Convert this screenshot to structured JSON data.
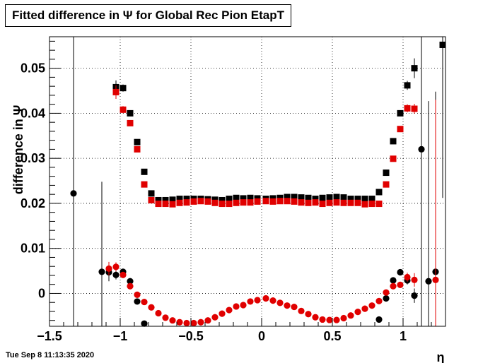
{
  "chart_data": {
    "type": "scatter",
    "title": "Fitted difference in  Ψ  for Global Rec Pion EtapT",
    "xlabel": "η",
    "ylabel": "difference in  Ψ",
    "xlim": [
      -1.5,
      1.3
    ],
    "ylim": [
      -0.0073,
      0.057
    ],
    "grid": true,
    "x_ticks": [
      -1.5,
      -1,
      -0.5,
      0,
      0.5,
      1
    ],
    "x_tick_labels": [
      "−1.5",
      "−1",
      "−0.5",
      "0",
      "0.5",
      "1"
    ],
    "y_ticks": [
      0,
      0.01,
      0.02,
      0.03,
      0.04,
      0.05
    ],
    "y_tick_labels": [
      "0",
      "0.01",
      "0.02",
      "0.03",
      "0.04",
      "0.05"
    ],
    "series": [
      {
        "marker": "square",
        "color": "#000000",
        "x": [
          -1.03,
          -0.98,
          -0.93,
          -0.88,
          -0.83,
          -0.78,
          -0.73,
          -0.68,
          -0.63,
          -0.58,
          -0.53,
          -0.48,
          -0.43,
          -0.38,
          -0.33,
          -0.28,
          -0.23,
          -0.18,
          -0.13,
          -0.08,
          -0.03,
          0.03,
          0.08,
          0.13,
          0.18,
          0.23,
          0.28,
          0.33,
          0.38,
          0.43,
          0.48,
          0.53,
          0.58,
          0.63,
          0.68,
          0.73,
          0.78,
          0.83,
          0.88,
          0.93,
          0.98,
          1.03,
          1.08,
          1.28
        ],
        "y": [
          0.0458,
          0.0456,
          0.04,
          0.0336,
          0.027,
          0.0222,
          0.0207,
          0.0207,
          0.0208,
          0.021,
          0.021,
          0.021,
          0.021,
          0.0209,
          0.0208,
          0.0207,
          0.021,
          0.0212,
          0.0211,
          0.0212,
          0.0211,
          0.021,
          0.0211,
          0.0212,
          0.0214,
          0.0214,
          0.0213,
          0.0212,
          0.021,
          0.0212,
          0.0213,
          0.0214,
          0.0213,
          0.021,
          0.021,
          0.021,
          0.021,
          0.0225,
          0.0268,
          0.0338,
          0.04,
          0.0462,
          0.05,
          0.0552
        ],
        "yerr": [
          0.0015,
          0.0008,
          0.0004,
          0.0003,
          0.0003,
          0.0002,
          0.0002,
          0.0002,
          0.0002,
          0.0002,
          0.0002,
          0.0002,
          0.0002,
          0.0002,
          0.0002,
          0.0002,
          0.0002,
          0.0002,
          0.0002,
          0.0002,
          0.0002,
          0.0002,
          0.0002,
          0.0002,
          0.0002,
          0.0002,
          0.0002,
          0.0002,
          0.0002,
          0.0002,
          0.0002,
          0.0002,
          0.0002,
          0.0002,
          0.0002,
          0.0002,
          0.0002,
          0.0003,
          0.0003,
          0.0004,
          0.0006,
          0.001,
          0.0022,
          0.034
        ]
      },
      {
        "marker": "square",
        "color": "#e00000",
        "x": [
          -1.03,
          -0.98,
          -0.93,
          -0.88,
          -0.83,
          -0.78,
          -0.73,
          -0.68,
          -0.63,
          -0.58,
          -0.53,
          -0.48,
          -0.43,
          -0.38,
          -0.33,
          -0.28,
          -0.23,
          -0.18,
          -0.13,
          -0.08,
          -0.03,
          0.03,
          0.08,
          0.13,
          0.18,
          0.23,
          0.28,
          0.33,
          0.38,
          0.43,
          0.48,
          0.53,
          0.58,
          0.63,
          0.68,
          0.73,
          0.78,
          0.83,
          0.88,
          0.93,
          0.98,
          1.03,
          1.08
        ],
        "y": [
          0.0447,
          0.0408,
          0.0378,
          0.032,
          0.0242,
          0.0207,
          0.0199,
          0.0199,
          0.0198,
          0.0201,
          0.0202,
          0.0204,
          0.0205,
          0.0204,
          0.0201,
          0.0199,
          0.0199,
          0.0201,
          0.0202,
          0.0202,
          0.0204,
          0.0205,
          0.0204,
          0.0205,
          0.0205,
          0.0204,
          0.0202,
          0.0201,
          0.0202,
          0.0199,
          0.0201,
          0.0202,
          0.0201,
          0.0201,
          0.0201,
          0.0198,
          0.0199,
          0.0199,
          0.0242,
          0.0299,
          0.0365,
          0.0411,
          0.041
        ],
        "yerr": [
          0.0015,
          0.0008,
          0.0004,
          0.0003,
          0.0003,
          0.0002,
          0.0002,
          0.0002,
          0.0002,
          0.0002,
          0.0002,
          0.0002,
          0.0002,
          0.0002,
          0.0002,
          0.0002,
          0.0002,
          0.0002,
          0.0002,
          0.0002,
          0.0002,
          0.0002,
          0.0002,
          0.0002,
          0.0002,
          0.0002,
          0.0002,
          0.0002,
          0.0002,
          0.0002,
          0.0002,
          0.0002,
          0.0002,
          0.0002,
          0.0002,
          0.0002,
          0.0002,
          0.0002,
          0.0003,
          0.0004,
          0.0006,
          0.0009,
          0.0011
        ]
      },
      {
        "marker": "circle",
        "color": "#000000",
        "x": [
          -1.33,
          -1.13,
          -1.08,
          -1.03,
          -0.98,
          -0.93,
          -0.88,
          -0.83,
          0.83,
          0.88,
          0.93,
          0.98,
          1.03,
          1.08,
          1.13,
          1.18,
          1.23
        ],
        "y": [
          0.0222,
          0.0048,
          0.0047,
          0.0041,
          0.0048,
          0.0027,
          -0.0018,
          -0.0067,
          -0.0058,
          -0.0011,
          0.0029,
          0.0047,
          0.0029,
          -0.0005,
          0.032,
          0.0027,
          0.0048
        ],
        "yerr": [
          0.04,
          0.02,
          0.002,
          0.001,
          0.0006,
          0.0005,
          0.0004,
          0.0003,
          0.0003,
          0.0004,
          0.0005,
          0.0006,
          0.0009,
          0.0016,
          0.04,
          0.04,
          0.04
        ]
      },
      {
        "marker": "circle",
        "color": "#e00000",
        "x": [
          -1.08,
          -1.03,
          -0.98,
          -0.93,
          -0.88,
          -0.83,
          -0.78,
          -0.73,
          -0.68,
          -0.63,
          -0.58,
          -0.53,
          -0.48,
          -0.43,
          -0.38,
          -0.33,
          -0.28,
          -0.23,
          -0.18,
          -0.13,
          -0.08,
          -0.03,
          0.03,
          0.08,
          0.13,
          0.18,
          0.23,
          0.28,
          0.33,
          0.38,
          0.43,
          0.48,
          0.53,
          0.58,
          0.63,
          0.68,
          0.73,
          0.78,
          0.83,
          0.88,
          0.93,
          0.98,
          1.03,
          1.08,
          1.23
        ],
        "y": [
          0.0055,
          0.0059,
          0.0041,
          0.0016,
          -0.0003,
          -0.0019,
          -0.0031,
          -0.0044,
          -0.0054,
          -0.006,
          -0.0064,
          -0.0066,
          -0.0066,
          -0.0064,
          -0.006,
          -0.0053,
          -0.0045,
          -0.0037,
          -0.0029,
          -0.0026,
          -0.0018,
          -0.0015,
          -0.0011,
          -0.0016,
          -0.0021,
          -0.0027,
          -0.003,
          -0.0039,
          -0.0046,
          -0.0053,
          -0.0058,
          -0.0059,
          -0.0059,
          -0.0055,
          -0.0049,
          -0.0041,
          -0.0034,
          -0.0027,
          -0.0017,
          0.0002,
          0.0016,
          0.0019,
          0.0036,
          0.003,
          0.003
        ],
        "yerr": [
          0.0015,
          0.001,
          0.0006,
          0.0004,
          0.0003,
          0.0003,
          0.0002,
          0.0002,
          0.0002,
          0.0002,
          0.0002,
          0.0002,
          0.0002,
          0.0002,
          0.0002,
          0.0002,
          0.0002,
          0.0002,
          0.0002,
          0.0002,
          0.0002,
          0.0002,
          0.0002,
          0.0002,
          0.0002,
          0.0002,
          0.0002,
          0.0002,
          0.0002,
          0.0002,
          0.0002,
          0.0002,
          0.0002,
          0.0002,
          0.0002,
          0.0002,
          0.0002,
          0.0003,
          0.0003,
          0.0004,
          0.0005,
          0.0006,
          0.001,
          0.0015,
          0.04
        ]
      }
    ]
  },
  "footer": {
    "timestamp": "Tue Sep  8 11:13:35 2020"
  }
}
